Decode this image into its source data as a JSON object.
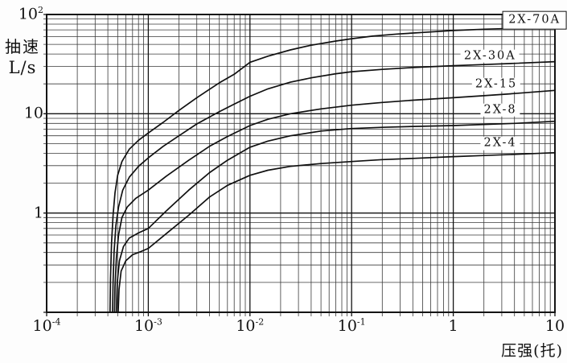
{
  "chart_data": {
    "type": "line",
    "x_scale": "log",
    "y_scale": "log",
    "xlim": [
      0.0001,
      10
    ],
    "ylim": [
      0.1,
      100
    ],
    "xlabel": "压强(托)",
    "ylabel_line1": "抽速",
    "ylabel_line2": "L/s",
    "grid": "full log-log grid with minor decade subdivisions, on",
    "legend_position": "labels at right end of each curve",
    "x_ticks": [
      {
        "base": "10",
        "sup": "-4",
        "value": 0.0001
      },
      {
        "base": "10",
        "sup": "-3",
        "value": 0.001
      },
      {
        "base": "10",
        "sup": "-2",
        "value": 0.01
      },
      {
        "base": "10",
        "sup": "-1",
        "value": 0.1
      },
      {
        "base": "1",
        "sup": "",
        "value": 1
      },
      {
        "base": "10",
        "sup": "",
        "value": 10
      }
    ],
    "y_ticks": [
      {
        "base": "10",
        "sup": "2",
        "value": 100
      },
      {
        "base": "10",
        "sup": "",
        "value": 10
      },
      {
        "base": "1",
        "sup": "",
        "value": 1
      }
    ],
    "series": [
      {
        "name": "2X-70A",
        "label": "2X-70A",
        "boxed": true,
        "label_at": [
          6.3,
          88
        ],
        "points": [
          [
            0.00042,
            0.1
          ],
          [
            0.000425,
            0.22
          ],
          [
            0.000435,
            0.5
          ],
          [
            0.00045,
            0.95
          ],
          [
            0.00047,
            1.6
          ],
          [
            0.0005,
            2.4
          ],
          [
            0.00055,
            3.3
          ],
          [
            0.00065,
            4.4
          ],
          [
            0.0008,
            5.4
          ],
          [
            0.001,
            6.4
          ],
          [
            0.0014,
            8.2
          ],
          [
            0.002,
            10.8
          ],
          [
            0.003,
            14.5
          ],
          [
            0.005,
            20.5
          ],
          [
            0.007,
            25
          ],
          [
            0.01,
            33
          ],
          [
            0.015,
            38
          ],
          [
            0.025,
            44
          ],
          [
            0.04,
            49
          ],
          [
            0.07,
            54
          ],
          [
            0.1,
            57
          ],
          [
            0.16,
            60.5
          ],
          [
            0.28,
            63.5
          ],
          [
            0.5,
            66
          ],
          [
            1,
            69
          ],
          [
            2,
            71
          ],
          [
            4,
            72.5
          ],
          [
            10,
            75
          ]
        ]
      },
      {
        "name": "2X-30A",
        "label": "2X-30A",
        "boxed": false,
        "label_at": [
          2.3,
          38
        ],
        "points": [
          [
            0.000445,
            0.1
          ],
          [
            0.00045,
            0.2
          ],
          [
            0.00046,
            0.4
          ],
          [
            0.00048,
            0.75
          ],
          [
            0.00051,
            1.15
          ],
          [
            0.00056,
            1.7
          ],
          [
            0.00065,
            2.3
          ],
          [
            0.0008,
            2.95
          ],
          [
            0.001,
            3.6
          ],
          [
            0.0014,
            4.7
          ],
          [
            0.002,
            6.0
          ],
          [
            0.003,
            7.9
          ],
          [
            0.005,
            10.5
          ],
          [
            0.007,
            12.5
          ],
          [
            0.01,
            15
          ],
          [
            0.015,
            17.8
          ],
          [
            0.025,
            20.8
          ],
          [
            0.04,
            23
          ],
          [
            0.07,
            25.3
          ],
          [
            0.1,
            26.5
          ],
          [
            0.2,
            28
          ],
          [
            0.4,
            29.2
          ],
          [
            1,
            30.5
          ],
          [
            2,
            31.3
          ],
          [
            4,
            32.2
          ],
          [
            10,
            33.5
          ]
        ]
      },
      {
        "name": "2X-15",
        "label": "2X-15",
        "boxed": false,
        "label_at": [
          2.65,
          19.7
        ],
        "points": [
          [
            0.000465,
            0.1
          ],
          [
            0.00047,
            0.18
          ],
          [
            0.000485,
            0.35
          ],
          [
            0.00051,
            0.6
          ],
          [
            0.00055,
            0.9
          ],
          [
            0.00062,
            1.15
          ],
          [
            0.00075,
            1.4
          ],
          [
            0.001,
            1.7
          ],
          [
            0.0015,
            2.35
          ],
          [
            0.0025,
            3.4
          ],
          [
            0.004,
            4.7
          ],
          [
            0.006,
            5.9
          ],
          [
            0.01,
            7.6
          ],
          [
            0.015,
            8.8
          ],
          [
            0.025,
            10
          ],
          [
            0.05,
            11.2
          ],
          [
            0.1,
            12.2
          ],
          [
            0.2,
            13
          ],
          [
            0.4,
            13.7
          ],
          [
            1,
            14.5
          ],
          [
            2,
            15.2
          ],
          [
            4,
            16
          ],
          [
            10,
            17.2
          ]
        ]
      },
      {
        "name": "2X-8",
        "label": "2X-8",
        "boxed": false,
        "label_at": [
          2.9,
          10.9
        ],
        "points": [
          [
            0.000485,
            0.1
          ],
          [
            0.000495,
            0.2
          ],
          [
            0.00052,
            0.33
          ],
          [
            0.00057,
            0.46
          ],
          [
            0.00065,
            0.56
          ],
          [
            0.0008,
            0.63
          ],
          [
            0.001,
            0.7
          ],
          [
            0.0015,
            1.05
          ],
          [
            0.0025,
            1.7
          ],
          [
            0.004,
            2.55
          ],
          [
            0.006,
            3.4
          ],
          [
            0.01,
            4.6
          ],
          [
            0.015,
            5.3
          ],
          [
            0.025,
            6.0
          ],
          [
            0.05,
            6.7
          ],
          [
            0.1,
            7.1
          ],
          [
            0.2,
            7.3
          ],
          [
            0.4,
            7.45
          ],
          [
            1,
            7.6
          ],
          [
            2,
            7.8
          ],
          [
            4,
            8.0
          ],
          [
            10,
            8.4
          ]
        ]
      },
      {
        "name": "2X-4",
        "label": "2X-4",
        "boxed": false,
        "label_at": [
          2.9,
          5.05
        ],
        "points": [
          [
            0.000505,
            0.1
          ],
          [
            0.000515,
            0.17
          ],
          [
            0.00054,
            0.26
          ],
          [
            0.0006,
            0.33
          ],
          [
            0.0007,
            0.38
          ],
          [
            0.00085,
            0.41
          ],
          [
            0.001,
            0.44
          ],
          [
            0.0015,
            0.62
          ],
          [
            0.0025,
            0.95
          ],
          [
            0.004,
            1.45
          ],
          [
            0.006,
            1.9
          ],
          [
            0.01,
            2.4
          ],
          [
            0.015,
            2.7
          ],
          [
            0.025,
            2.95
          ],
          [
            0.05,
            3.15
          ],
          [
            0.1,
            3.3
          ],
          [
            0.2,
            3.45
          ],
          [
            0.4,
            3.55
          ],
          [
            1,
            3.7
          ],
          [
            2,
            3.8
          ],
          [
            4,
            3.9
          ],
          [
            10,
            4.05
          ]
        ]
      }
    ]
  },
  "colors": {
    "background": "#fdfdfd",
    "plot_background": "#ffffff",
    "grid_minor": "#3a3a3a",
    "grid_major": "#141414",
    "curve": "#101010",
    "text": "#111111"
  }
}
